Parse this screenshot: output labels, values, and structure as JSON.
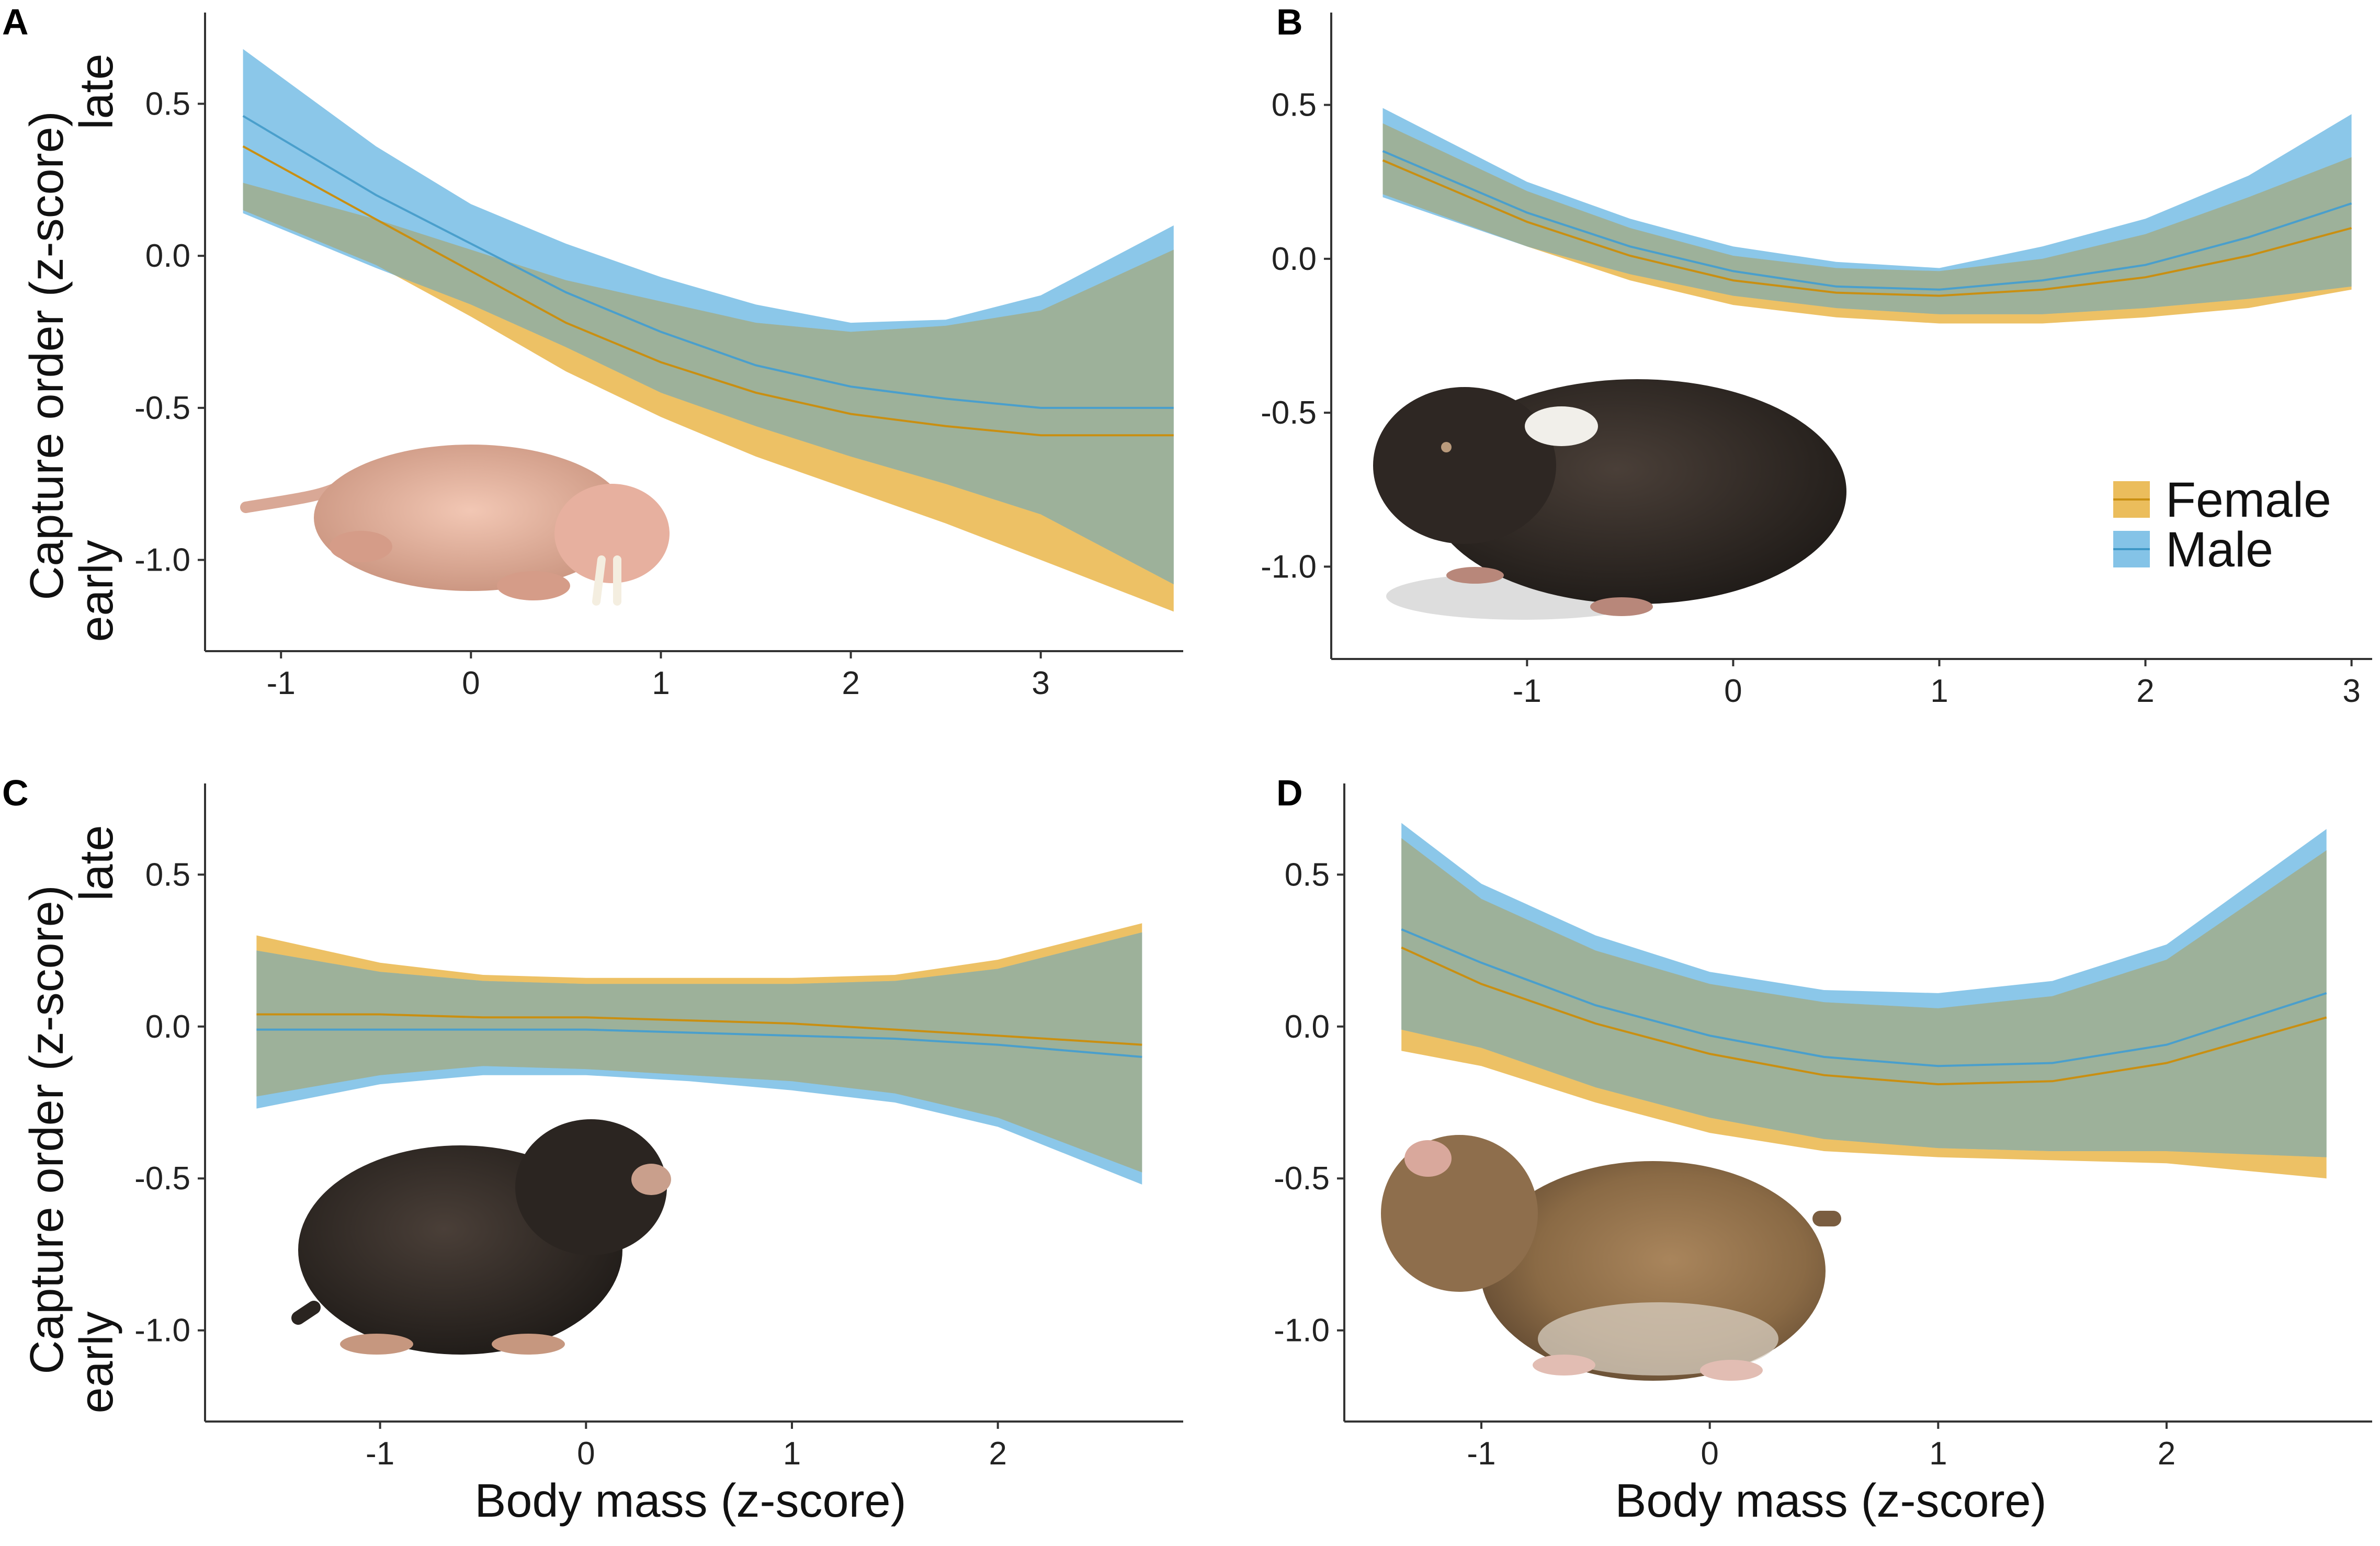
{
  "figure": {
    "y_axis_title": "Capture order (z-score)",
    "y_axis_high_label": "late",
    "y_axis_low_label": "early",
    "x_axis_title": "Body mass (z-score)",
    "legend": [
      {
        "label": "Female",
        "color": "#E8B13F"
      },
      {
        "label": "Male",
        "color": "#6EB9E3"
      }
    ],
    "overlap_color": "#9DB19A"
  },
  "chart_data": [
    {
      "panel": "A",
      "type": "line",
      "species_image": "naked-mole-rat",
      "xlabel": "Body mass (z-score)",
      "ylabel": "Capture order (z-score)",
      "xlim": [
        -1.4,
        3.75
      ],
      "ylim": [
        -1.3,
        0.8
      ],
      "xticks": [
        -1,
        0,
        1,
        2,
        3
      ],
      "yticks": [
        -1.0,
        -0.5,
        0.0,
        0.5
      ],
      "ytick_labels": [
        "-1.0",
        "-0.5",
        "0.0",
        "0.5"
      ],
      "series": [
        {
          "name": "Female",
          "x": [
            -1.2,
            -0.5,
            0,
            0.5,
            1,
            1.5,
            2,
            2.5,
            3,
            3.7
          ],
          "fit": [
            0.36,
            0.12,
            -0.05,
            -0.22,
            -0.35,
            -0.45,
            -0.52,
            -0.56,
            -0.59,
            -0.59
          ],
          "lower": [
            0.15,
            -0.03,
            -0.2,
            -0.38,
            -0.53,
            -0.66,
            -0.77,
            -0.88,
            -1.0,
            -1.17
          ],
          "upper": [
            0.24,
            0.12,
            0.02,
            -0.08,
            -0.15,
            -0.22,
            -0.25,
            -0.23,
            -0.18,
            0.02
          ]
        },
        {
          "name": "Male",
          "x": [
            -1.2,
            -0.5,
            0,
            0.5,
            1,
            1.5,
            2,
            2.5,
            3,
            3.7
          ],
          "fit": [
            0.46,
            0.2,
            0.04,
            -0.12,
            -0.25,
            -0.36,
            -0.43,
            -0.47,
            -0.5,
            -0.5
          ],
          "lower": [
            0.14,
            -0.04,
            -0.16,
            -0.3,
            -0.45,
            -0.56,
            -0.66,
            -0.75,
            -0.85,
            -1.08
          ],
          "upper": [
            0.68,
            0.36,
            0.17,
            0.04,
            -0.07,
            -0.16,
            -0.22,
            -0.21,
            -0.13,
            0.1
          ]
        }
      ]
    },
    {
      "panel": "B",
      "type": "line",
      "species_image": "dark-mole-rat-with-white-patch",
      "xlabel": "Body mass (z-score)",
      "ylabel": "Capture order (z-score)",
      "xlim": [
        -1.95,
        3.1
      ],
      "ylim": [
        -1.3,
        0.8
      ],
      "xticks": [
        -1,
        0,
        1,
        2,
        3
      ],
      "yticks": [
        -1.0,
        -0.5,
        0.0,
        0.5
      ],
      "ytick_labels": [
        "-1.0",
        "-0.5",
        "0.0",
        "0.5"
      ],
      "series": [
        {
          "name": "Female",
          "x": [
            -1.7,
            -1,
            -0.5,
            0,
            0.5,
            1,
            1.5,
            2,
            2.5,
            3
          ],
          "fit": [
            0.32,
            0.12,
            0.01,
            -0.07,
            -0.11,
            -0.12,
            -0.1,
            -0.06,
            0.01,
            0.1
          ],
          "lower": [
            0.21,
            0.04,
            -0.07,
            -0.15,
            -0.19,
            -0.21,
            -0.21,
            -0.19,
            -0.16,
            -0.1
          ],
          "upper": [
            0.44,
            0.22,
            0.1,
            0.01,
            -0.03,
            -0.04,
            0.0,
            0.08,
            0.2,
            0.33
          ]
        },
        {
          "name": "Male",
          "x": [
            -1.7,
            -1,
            -0.5,
            0,
            0.5,
            1,
            1.5,
            2,
            2.5,
            3
          ],
          "fit": [
            0.35,
            0.15,
            0.04,
            -0.04,
            -0.09,
            -0.1,
            -0.07,
            -0.02,
            0.07,
            0.18
          ],
          "lower": [
            0.2,
            0.04,
            -0.05,
            -0.12,
            -0.16,
            -0.18,
            -0.18,
            -0.16,
            -0.13,
            -0.09
          ],
          "upper": [
            0.49,
            0.25,
            0.13,
            0.04,
            -0.01,
            -0.03,
            0.04,
            0.13,
            0.27,
            0.47
          ]
        }
      ]
    },
    {
      "panel": "C",
      "type": "line",
      "species_image": "dark-mole-rat",
      "xlabel": "Body mass (z-score)",
      "ylabel": "Capture order (z-score)",
      "xlim": [
        -1.85,
        2.9
      ],
      "ylim": [
        -1.3,
        0.8
      ],
      "xticks": [
        -1,
        0,
        1,
        2
      ],
      "yticks": [
        -1.0,
        -0.5,
        0.0,
        0.5
      ],
      "ytick_labels": [
        "-1.0",
        "-0.5",
        "0.0",
        "0.5"
      ],
      "series": [
        {
          "name": "Female",
          "x": [
            -1.6,
            -1,
            -0.5,
            0,
            0.5,
            1,
            1.5,
            2,
            2.7
          ],
          "fit": [
            0.04,
            0.04,
            0.03,
            0.03,
            0.02,
            0.01,
            -0.01,
            -0.03,
            -0.06
          ],
          "lower": [
            -0.23,
            -0.16,
            -0.13,
            -0.14,
            -0.16,
            -0.18,
            -0.22,
            -0.3,
            -0.48
          ],
          "upper": [
            0.3,
            0.21,
            0.17,
            0.16,
            0.16,
            0.16,
            0.17,
            0.22,
            0.34
          ]
        },
        {
          "name": "Male",
          "x": [
            -1.6,
            -1,
            -0.5,
            0,
            0.5,
            1,
            1.5,
            2,
            2.7
          ],
          "fit": [
            -0.01,
            -0.01,
            -0.01,
            -0.01,
            -0.02,
            -0.03,
            -0.04,
            -0.06,
            -0.1
          ],
          "lower": [
            -0.27,
            -0.19,
            -0.16,
            -0.16,
            -0.18,
            -0.21,
            -0.25,
            -0.33,
            -0.52
          ],
          "upper": [
            0.25,
            0.18,
            0.15,
            0.14,
            0.14,
            0.14,
            0.15,
            0.19,
            0.31
          ]
        }
      ]
    },
    {
      "panel": "D",
      "type": "line",
      "species_image": "brown-mole-rat",
      "xlabel": "Body mass (z-score)",
      "ylabel": "Capture order (z-score)",
      "xlim": [
        -1.6,
        2.9
      ],
      "ylim": [
        -1.3,
        0.8
      ],
      "xticks": [
        -1,
        0,
        1,
        2
      ],
      "yticks": [
        -1.0,
        -0.5,
        0.0,
        0.5
      ],
      "ytick_labels": [
        "-1.0",
        "-0.5",
        "0.0",
        "0.5"
      ],
      "series": [
        {
          "name": "Female",
          "x": [
            -1.35,
            -1,
            -0.5,
            0,
            0.5,
            1,
            1.5,
            2,
            2.7
          ],
          "fit": [
            0.26,
            0.14,
            0.01,
            -0.09,
            -0.16,
            -0.19,
            -0.18,
            -0.12,
            0.03
          ],
          "lower": [
            -0.08,
            -0.13,
            -0.25,
            -0.35,
            -0.41,
            -0.43,
            -0.44,
            -0.45,
            -0.5
          ],
          "upper": [
            0.62,
            0.42,
            0.25,
            0.14,
            0.08,
            0.06,
            0.1,
            0.22,
            0.58
          ]
        },
        {
          "name": "Male",
          "x": [
            -1.35,
            -1,
            -0.5,
            0,
            0.5,
            1,
            1.5,
            2,
            2.7
          ],
          "fit": [
            0.32,
            0.21,
            0.07,
            -0.03,
            -0.1,
            -0.13,
            -0.12,
            -0.06,
            0.11
          ],
          "lower": [
            -0.01,
            -0.07,
            -0.2,
            -0.3,
            -0.37,
            -0.4,
            -0.41,
            -0.41,
            -0.43
          ],
          "upper": [
            0.67,
            0.47,
            0.3,
            0.18,
            0.12,
            0.11,
            0.15,
            0.27,
            0.65
          ]
        }
      ]
    }
  ]
}
